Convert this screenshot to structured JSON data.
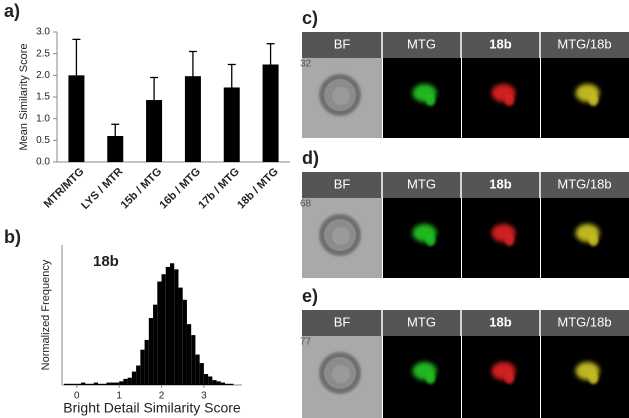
{
  "chart_data": [
    {
      "type": "bar",
      "ylabel": "Mean Similarity Score",
      "categories": [
        "MTR/MTG",
        "LYS / MTR",
        "15b / MTG",
        "16b / MTG",
        "17b / MTG",
        "18b / MTG"
      ],
      "values": [
        2.0,
        0.6,
        1.43,
        1.98,
        1.72,
        2.25
      ],
      "errors": [
        0.83,
        0.27,
        0.52,
        0.57,
        0.53,
        0.48
      ],
      "color": "#000000",
      "ylim": [
        0,
        3.0
      ],
      "yticks": [
        {
          "value": 0,
          "label": "0.0"
        },
        {
          "value": 0.5,
          "label": "0.5"
        },
        {
          "value": 1,
          "label": "1.0"
        },
        {
          "value": 1.5,
          "label": "1.5"
        },
        {
          "value": 2,
          "label": "2.0"
        },
        {
          "value": 2.5,
          "label": "2.5"
        },
        {
          "value": 3,
          "label": "3.0"
        }
      ]
    },
    {
      "type": "histogram",
      "annotation": "18b",
      "xlabel": "Bright Detail Similarity Score",
      "ylabel": "Normalized Frequency",
      "bins": [
        -0.3,
        -0.2,
        -0.1,
        0,
        0.1,
        0.2,
        0.3,
        0.4,
        0.5,
        0.6,
        0.7,
        0.8,
        0.9,
        1.0,
        1.1,
        1.2,
        1.3,
        1.4,
        1.5,
        1.6,
        1.7,
        1.8,
        1.9,
        2.0,
        2.1,
        2.2,
        2.3,
        2.4,
        2.5,
        2.6,
        2.7,
        2.8,
        2.9,
        3.0,
        3.1,
        3.2,
        3.3,
        3.4,
        3.5,
        3.6,
        3.7
      ],
      "values": [
        0.01,
        0.01,
        0.01,
        0.01,
        0.02,
        0.01,
        0.01,
        0.02,
        0.01,
        0.01,
        0.02,
        0.02,
        0.02,
        0.03,
        0.05,
        0.06,
        0.11,
        0.16,
        0.29,
        0.37,
        0.55,
        0.66,
        0.85,
        0.91,
        0.97,
        1.0,
        0.95,
        0.8,
        0.7,
        0.5,
        0.41,
        0.25,
        0.18,
        0.09,
        0.07,
        0.04,
        0.03,
        0.02,
        0.01,
        0.01
      ],
      "color": "#000000",
      "xlim": [
        -0.35,
        3.9
      ],
      "ylim": [
        0,
        1.15
      ],
      "xticks": [
        0,
        1,
        2,
        3
      ]
    }
  ],
  "panel_labels": [
    "a)",
    "b)"
  ],
  "image_panels": [
    {
      "label": "c)",
      "id": "32",
      "headers": [
        "BF",
        "MTG",
        "18b",
        "MTG/18b"
      ]
    },
    {
      "label": "d)",
      "id": "68",
      "headers": [
        "BF",
        "MTG",
        "18b",
        "MTG/18b"
      ]
    },
    {
      "label": "e)",
      "id": "77",
      "headers": [
        "BF",
        "MTG",
        "18b",
        "MTG/18b"
      ]
    }
  ]
}
